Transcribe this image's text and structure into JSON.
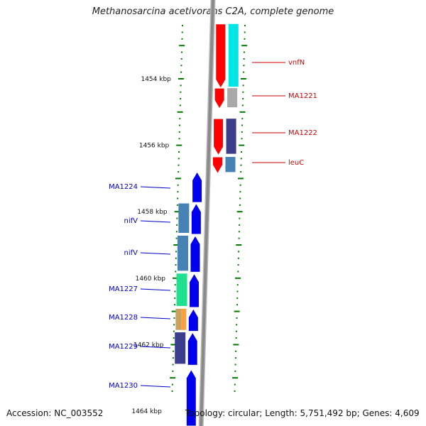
{
  "title": "Methanosarcina acetivorans C2A, complete genome",
  "footer": {
    "accession": "Accession: NC_003552",
    "topology": "Topology: circular; Length: 5,751,492 bp; Genes: 4,609"
  },
  "colors": {
    "right_label": "#cc0000",
    "left_label": "#0000cc",
    "backbone": "#8a8a8a",
    "tick": "#007a00"
  },
  "scale": {
    "unit": "kbp",
    "labeled_ticks": [
      {
        "kbp": 1454,
        "label": "1454 kbp"
      },
      {
        "kbp": 1456,
        "label": "1456 kbp"
      },
      {
        "kbp": 1458,
        "label": "1458 kbp"
      },
      {
        "kbp": 1460,
        "label": "1460 kbp"
      },
      {
        "kbp": 1462,
        "label": "1462 kbp"
      },
      {
        "kbp": 1464,
        "label": "1464 kbp"
      }
    ]
  },
  "genes_right": [
    {
      "label": "vnfN",
      "start": 1452.35,
      "end": 1454.28,
      "strand": "+",
      "track_color": "#ff0000",
      "func_color": "#00e6e6"
    },
    {
      "label": "MA1221",
      "start": 1454.28,
      "end": 1454.9,
      "strand": "+",
      "track_color": "#ff0000",
      "func_color": "#a9a9a9"
    },
    {
      "label": "MA1222",
      "start": 1455.2,
      "end": 1456.3,
      "strand": "+",
      "track_color": "#ff0000",
      "func_color": "#3c3c8c"
    },
    {
      "label": "leuC",
      "start": 1456.35,
      "end": 1456.85,
      "strand": "+",
      "track_color": "#ff0000",
      "func_color": "#4682b4"
    }
  ],
  "genes_left": [
    {
      "label": "MA1224",
      "start": 1456.8,
      "end": 1457.72,
      "strand": "-",
      "track_color": "#0000ee",
      "func_color": ""
    },
    {
      "label": "nifV",
      "start": 1457.75,
      "end": 1458.68,
      "strand": "-",
      "track_color": "#0000ee",
      "func_color": "#4682b4"
    },
    {
      "label": "nifV",
      "start": 1458.72,
      "end": 1459.82,
      "strand": "-",
      "track_color": "#0000ee",
      "func_color": "#4682b4"
    },
    {
      "label": "MA1227",
      "start": 1459.86,
      "end": 1460.88,
      "strand": "-",
      "track_color": "#0000ee",
      "func_color": "#20e090"
    },
    {
      "label": "MA1228",
      "start": 1460.92,
      "end": 1461.6,
      "strand": "-",
      "track_color": "#0000ee",
      "func_color": "#ffa040"
    },
    {
      "label": "MA1229",
      "start": 1461.63,
      "end": 1462.62,
      "strand": "-",
      "track_color": "#0000ee",
      "func_color": "#3c3c8c"
    },
    {
      "label": "MA1230",
      "start": 1462.75,
      "end": 1464.5,
      "strand": "-",
      "track_color": "#0000ee",
      "func_color": ""
    }
  ]
}
